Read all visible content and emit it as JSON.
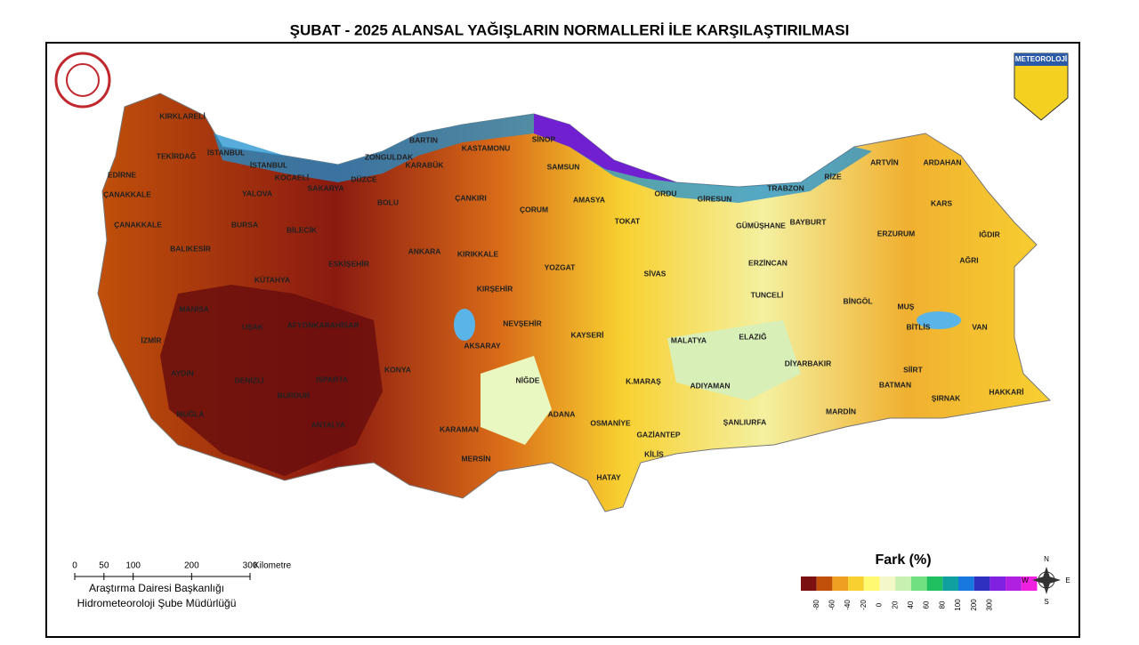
{
  "title": "ŞUBAT - 2025 ALANSAL YAĞIŞLARIN NORMALLERİ İLE KARŞILAŞTIRILMASI",
  "logo_text": "METEOROLOJİ",
  "provinces": [
    "KIRKLARELİ",
    "TEKİRDAĞ",
    "EDİRNE",
    "İSTANBUL",
    "İSTANBUL",
    "ÇANAKKALE",
    "ÇANAKKALE",
    "YALOVA",
    "KOCAELİ",
    "SAKARYA",
    "DÜZCE",
    "ZONGULDAK",
    "BARTIN",
    "KARABÜK",
    "KASTAMONU",
    "SİNOP",
    "SAMSUN",
    "ORDU",
    "GİRESUN",
    "TRABZON",
    "RİZE",
    "ARTVİN",
    "ARDAHAN",
    "KARS",
    "IĞDIR",
    "AĞRI",
    "ERZURUM",
    "BAYBURT",
    "GÜMÜŞHANE",
    "TOKAT",
    "AMASYA",
    "ÇORUM",
    "ÇANKIRI",
    "BOLU",
    "BİLECİK",
    "BURSA",
    "BALIKESİR",
    "ESKİŞEHİR",
    "ANKARA",
    "KIRIKKALE",
    "YOZGAT",
    "SİVAS",
    "ERZİNCAN",
    "TUNCELİ",
    "BİNGÖL",
    "MUŞ",
    "BİTLİS",
    "VAN",
    "KÜTAHYA",
    "KIRŞEHİR",
    "MANİSA",
    "UŞAK",
    "AFYONKARAHİSAR",
    "NEVŞEHİR",
    "KAYSERİ",
    "MALATYA",
    "ELAZIĞ",
    "İZMİR",
    "AKSARAY",
    "DİYARBAKIR",
    "SİİRT",
    "AYDIN",
    "DENİZLİ",
    "ISPARTA",
    "BURDUR",
    "KONYA",
    "NİĞDE",
    "K.MARAŞ",
    "ADIYAMAN",
    "BATMAN",
    "ŞIRNAK",
    "HAKKARİ",
    "MUĞLA",
    "ANTALYA",
    "ADANA",
    "OSMANİYE",
    "ŞANLIURFA",
    "MARDİN",
    "GAZİANTEP",
    "KARAMAN",
    "MERSİN",
    "KİLİS",
    "HATAY"
  ],
  "scale_bar": {
    "ticks": [
      0,
      50,
      100,
      200,
      300
    ],
    "unit": "Kilometre"
  },
  "credits": [
    "Araştırma Dairesi Başkanlığı",
    "Hidrometeoroloji Şube Müdürlüğü"
  ],
  "legend": {
    "title": "Fark (%)",
    "ticks": [
      -80,
      -60,
      -40,
      -20,
      0,
      20,
      40,
      60,
      80,
      100,
      200,
      300
    ],
    "colors": [
      "#7a1010",
      "#c0500a",
      "#f0a020",
      "#f8d030",
      "#fff870",
      "#f4f8c8",
      "#c8f0b0",
      "#70e080",
      "#20c060",
      "#10a0a0",
      "#1878e0",
      "#3030c0",
      "#8020e0",
      "#b020e0",
      "#f020e0"
    ]
  },
  "compass": {
    "n": "N",
    "e": "E",
    "s": "S",
    "w": "W"
  }
}
